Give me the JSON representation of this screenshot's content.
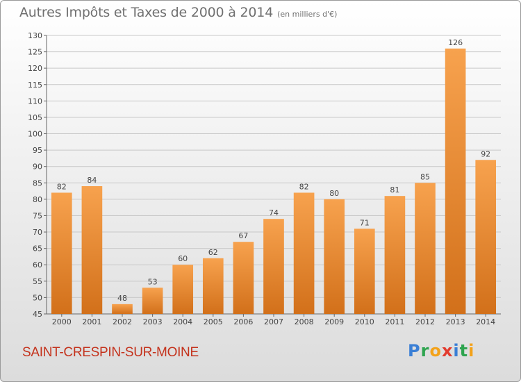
{
  "title": "Autres Impôts et Taxes de 2000 à 2014",
  "subtitle": "(en milliers d'€)",
  "city": "SAINT-CRESPIN-SUR-MOINE",
  "logo": {
    "text": "Proxiti",
    "letters": [
      {
        "ch": "P",
        "color": "#3a7fd5"
      },
      {
        "ch": "r",
        "color": "#2ea44f"
      },
      {
        "ch": "o",
        "color": "#f3a21a"
      },
      {
        "ch": "x",
        "color": "#e23b2e"
      },
      {
        "ch": "i",
        "color": "#3a7fd5"
      },
      {
        "ch": "t",
        "color": "#2ea44f"
      },
      {
        "ch": "i",
        "color": "#f3a21a"
      }
    ]
  },
  "colors": {
    "bar_light": "#f7a24e",
    "bar_dark": "#d2701a",
    "grid": "#c8c8c8",
    "city": "#c4321c"
  },
  "chart_data": {
    "type": "bar",
    "categories": [
      "2000",
      "2001",
      "2002",
      "2003",
      "2004",
      "2005",
      "2006",
      "2007",
      "2008",
      "2009",
      "2010",
      "2011",
      "2012",
      "2013",
      "2014"
    ],
    "values": [
      82,
      84,
      48,
      53,
      60,
      62,
      67,
      74,
      82,
      80,
      71,
      81,
      85,
      126,
      92
    ],
    "ylim": [
      45,
      130
    ],
    "yticks": [
      45,
      50,
      55,
      60,
      65,
      70,
      75,
      80,
      85,
      90,
      95,
      100,
      105,
      110,
      115,
      120,
      125,
      130
    ],
    "grid": true
  }
}
